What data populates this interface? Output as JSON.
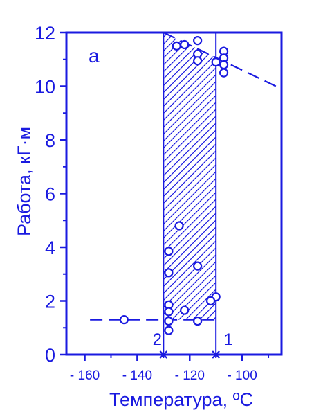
{
  "chart_data": {
    "type": "scatter",
    "panel_label": "а",
    "xlabel": "Температура, ºС",
    "ylabel": "Работа, кГ·м",
    "xlim": [
      -167,
      -85
    ],
    "ylim": [
      0,
      12
    ],
    "x_ticks": [
      -160,
      -140,
      -120,
      -100
    ],
    "x_minor_ticks": [
      -150,
      -130,
      -110,
      -90
    ],
    "y_ticks": [
      0,
      2,
      4,
      6,
      8,
      10,
      12
    ],
    "y_minor_ticks": [
      1,
      3,
      5,
      7,
      9,
      11
    ],
    "grid": false,
    "color": "#1a1ae0",
    "points": [
      {
        "x": -125,
        "y": 11.5
      },
      {
        "x": -122,
        "y": 11.55
      },
      {
        "x": -117,
        "y": 11.7
      },
      {
        "x": -117,
        "y": 11.2
      },
      {
        "x": -117,
        "y": 10.95
      },
      {
        "x": -110,
        "y": 10.9
      },
      {
        "x": -107,
        "y": 11.3
      },
      {
        "x": -107,
        "y": 11.05
      },
      {
        "x": -107,
        "y": 10.8
      },
      {
        "x": -107,
        "y": 10.5
      },
      {
        "x": -124,
        "y": 4.8
      },
      {
        "x": -128,
        "y": 3.85
      },
      {
        "x": -117,
        "y": 3.3
      },
      {
        "x": -128,
        "y": 3.05
      },
      {
        "x": -110,
        "y": 2.15
      },
      {
        "x": -112,
        "y": 2.0
      },
      {
        "x": -128,
        "y": 1.85
      },
      {
        "x": -122,
        "y": 1.65
      },
      {
        "x": -128,
        "y": 1.6
      },
      {
        "x": -145,
        "y": 1.3
      },
      {
        "x": -128,
        "y": 1.25
      },
      {
        "x": -117,
        "y": 1.25
      },
      {
        "x": -128,
        "y": 0.9
      }
    ],
    "upper_dashed_line": {
      "x": [
        -130,
        -85
      ],
      "y": [
        12.0,
        9.9
      ]
    },
    "lower_dashed_line": {
      "x": [
        -158,
        -110
      ],
      "y": [
        1.3,
        1.3
      ]
    },
    "hatched_region": {
      "x_start": -130,
      "x_end": -110,
      "y_bottom": 1.3
    },
    "transitions": [
      {
        "label": "2",
        "x": -130
      },
      {
        "label": "1",
        "x": -110
      }
    ]
  }
}
